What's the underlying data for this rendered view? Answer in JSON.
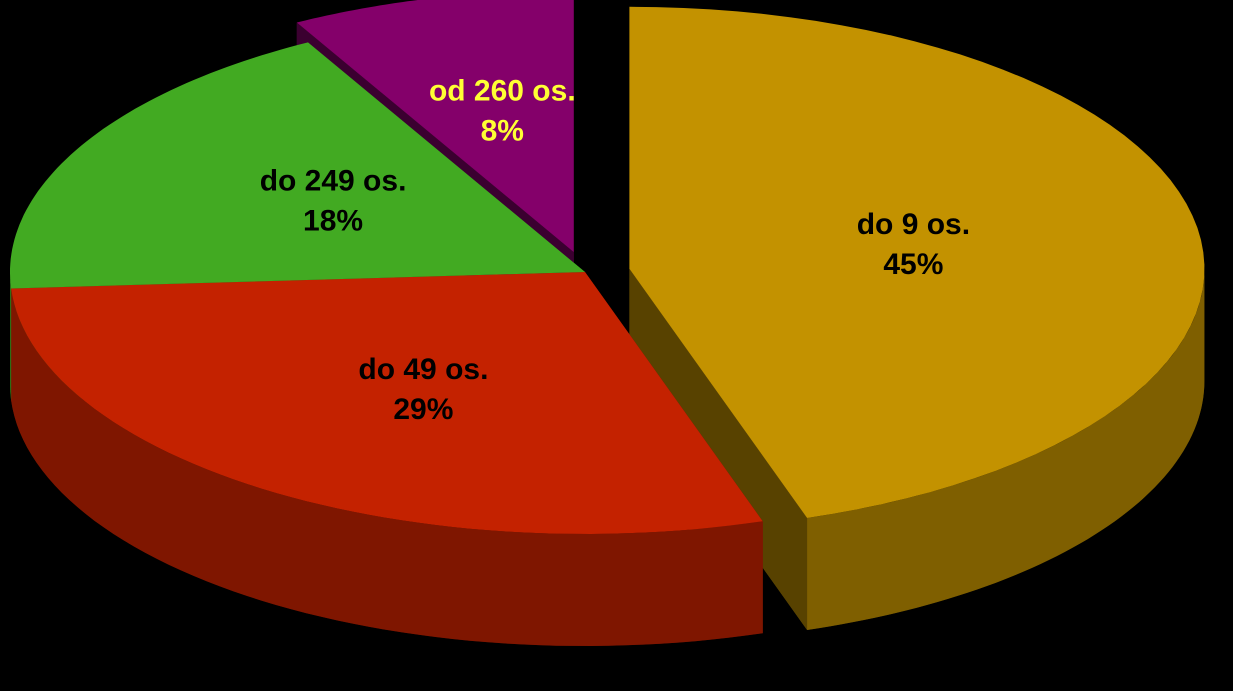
{
  "chart_data": {
    "type": "pie",
    "categories": [
      "do 9 os.",
      "do 49 os.",
      "do 249 os.",
      "od 260 os."
    ],
    "values": [
      45,
      29,
      18,
      8
    ],
    "value_labels": [
      "45%",
      "29%",
      "18%",
      "8%"
    ],
    "colors": [
      "#c39200",
      "#c42200",
      "#42aa22",
      "#84006a"
    ]
  }
}
